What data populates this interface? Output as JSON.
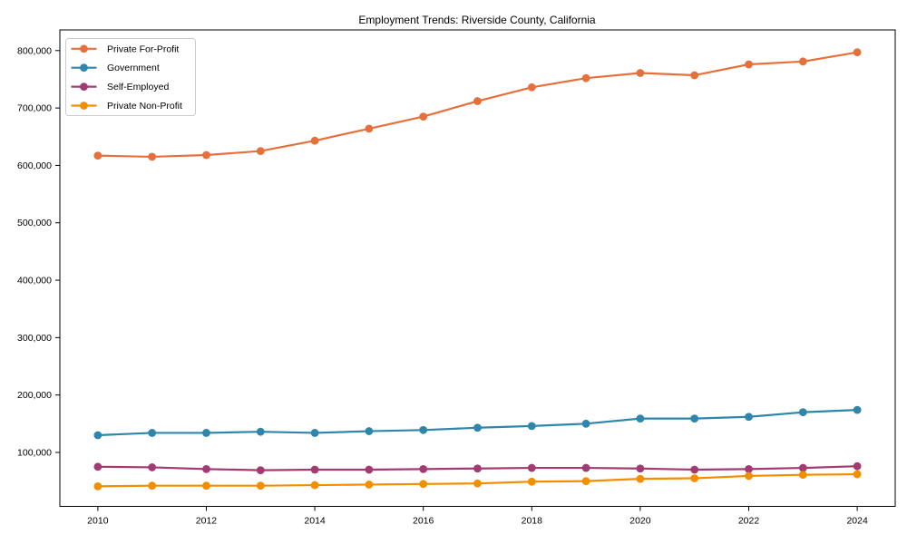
{
  "chart_data": {
    "type": "line",
    "title": "Employment Trends: Riverside County, California",
    "xlabel": "",
    "ylabel": "",
    "x": [
      2010,
      2011,
      2012,
      2013,
      2014,
      2015,
      2016,
      2017,
      2018,
      2019,
      2020,
      2021,
      2022,
      2023,
      2024
    ],
    "series": [
      {
        "name": "Private For-Profit",
        "color": "#E6703C",
        "values": [
          617000,
          615000,
          618000,
          625000,
          643000,
          664000,
          685000,
          712000,
          736000,
          752000,
          761000,
          757000,
          776000,
          781000,
          797000
        ]
      },
      {
        "name": "Government",
        "color": "#2E86AB",
        "values": [
          130000,
          134000,
          134000,
          136000,
          134000,
          137000,
          139000,
          143000,
          146000,
          150000,
          159000,
          159000,
          162000,
          170000,
          174000
        ]
      },
      {
        "name": "Self-Employed",
        "color": "#A23B72",
        "values": [
          75000,
          74000,
          71000,
          69000,
          70000,
          70000,
          71000,
          72000,
          73000,
          73000,
          72000,
          70000,
          71000,
          73000,
          76000
        ]
      },
      {
        "name": "Private Non-Profit",
        "color": "#F18F01",
        "values": [
          41000,
          42000,
          42000,
          42000,
          43000,
          44000,
          45000,
          46000,
          49000,
          50000,
          54000,
          55000,
          59000,
          61000,
          62000
        ]
      }
    ],
    "xticks": [
      2010,
      2012,
      2014,
      2016,
      2018,
      2020,
      2022,
      2024
    ],
    "yticks": [
      100000,
      200000,
      300000,
      400000,
      500000,
      600000,
      700000,
      800000
    ],
    "ytick_labels": [
      "100,000",
      "200,000",
      "300,000",
      "400,000",
      "500,000",
      "600,000",
      "700,000",
      "800,000"
    ],
    "xlim": [
      2009.3,
      2024.7
    ],
    "ylim": [
      6000,
      836000
    ],
    "grid": false,
    "legend_position": "upper-left",
    "axis_color": "#000000",
    "background_color": "#ffffff"
  }
}
